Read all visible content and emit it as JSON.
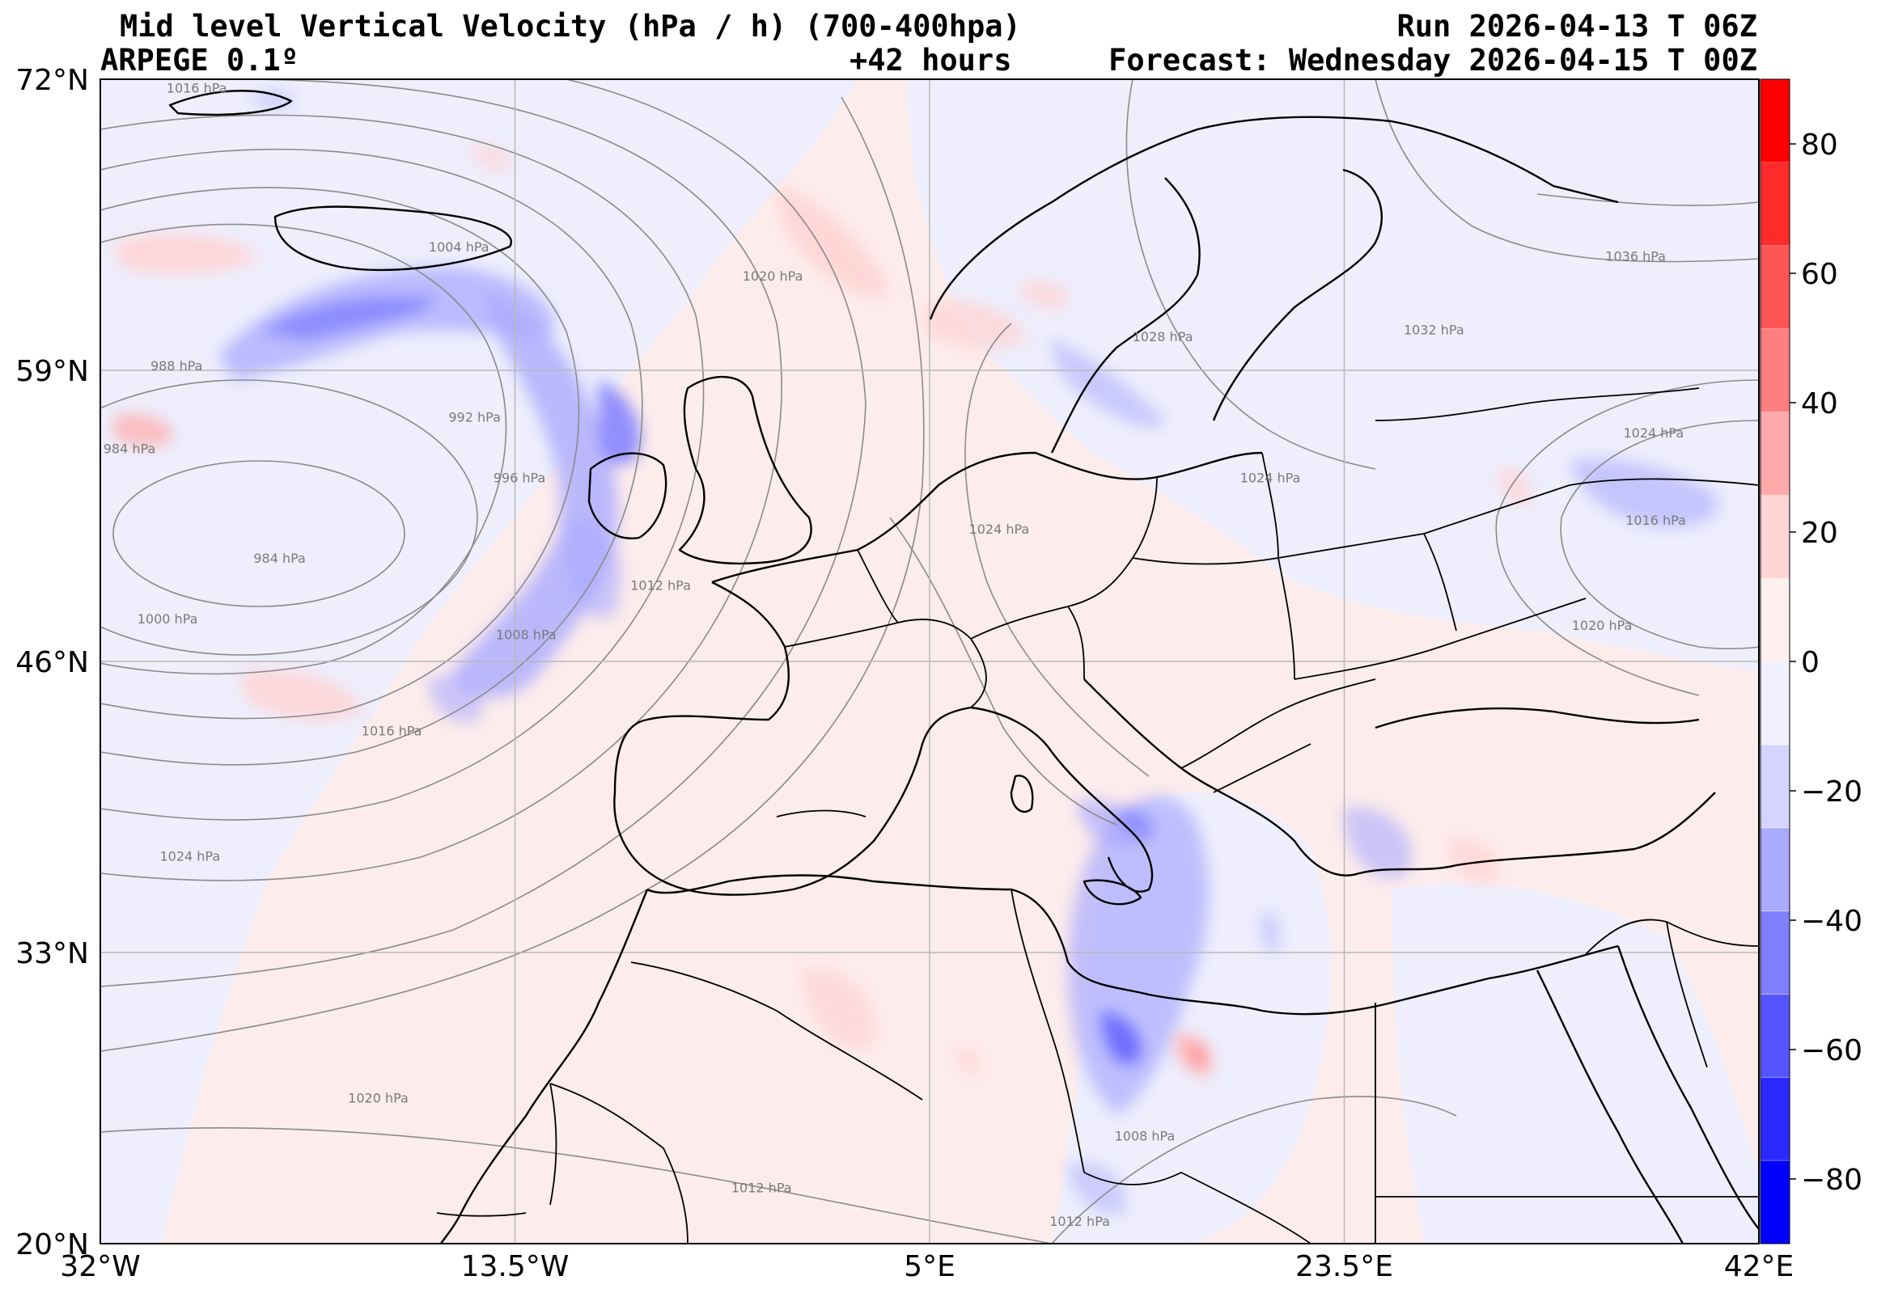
{
  "header": {
    "title": "Mid level Vertical Velocity (hPa / h)  (700-400hpa)",
    "run": "Run 2026-04-13 T 06Z",
    "model": "ARPEGE 0.1º",
    "lead": "+42 hours",
    "forecast": "Forecast: Wednesday 2026-04-15 T 00Z"
  },
  "map": {
    "lon_range": [
      -32,
      42
    ],
    "lat_range": [
      20,
      72
    ],
    "lat_ticks": [
      {
        "value": 72,
        "label": "72°N"
      },
      {
        "value": 59,
        "label": "59°N"
      },
      {
        "value": 46,
        "label": "46°N"
      },
      {
        "value": 33,
        "label": "33°N"
      },
      {
        "value": 20,
        "label": "20°N"
      }
    ],
    "lon_ticks": [
      {
        "value": -32,
        "label": "32°W"
      },
      {
        "value": -13.5,
        "label": "13.5°W"
      },
      {
        "value": 5,
        "label": "5°E"
      },
      {
        "value": 23.5,
        "label": "23.5°E"
      },
      {
        "value": 42,
        "label": "42°E"
      }
    ],
    "isobar_labels": [
      {
        "text": "1016 hPa",
        "lon": -27.7,
        "lat": 71.4
      },
      {
        "text": "1004 hPa",
        "lon": -16.0,
        "lat": 64.3
      },
      {
        "text": "988 hPa",
        "lon": -28.6,
        "lat": 59.0
      },
      {
        "text": "992 hPa",
        "lon": -15.3,
        "lat": 56.7
      },
      {
        "text": "984 hPa",
        "lon": -30.7,
        "lat": 55.3
      },
      {
        "text": "996 hPa",
        "lon": -13.3,
        "lat": 54.0
      },
      {
        "text": "984 hPa",
        "lon": -24.0,
        "lat": 50.4
      },
      {
        "text": "1000 hPa",
        "lon": -29.0,
        "lat": 47.7
      },
      {
        "text": "1008 hPa",
        "lon": -13.0,
        "lat": 47.0
      },
      {
        "text": "1012 hPa",
        "lon": -7.0,
        "lat": 49.2
      },
      {
        "text": "1016 hPa",
        "lon": -19.0,
        "lat": 42.7
      },
      {
        "text": "1024 hPa",
        "lon": -28.0,
        "lat": 37.1
      },
      {
        "text": "1020 hPa",
        "lon": -19.6,
        "lat": 26.3
      },
      {
        "text": "1012 hPa",
        "lon": -2.5,
        "lat": 22.3
      },
      {
        "text": "1020 hPa",
        "lon": -2.0,
        "lat": 63.0
      },
      {
        "text": "1024 hPa",
        "lon": 8.1,
        "lat": 51.7
      },
      {
        "text": "1028 hPa",
        "lon": 15.4,
        "lat": 60.3
      },
      {
        "text": "1024 hPa",
        "lon": 20.2,
        "lat": 54.0
      },
      {
        "text": "1032 hPa",
        "lon": 27.5,
        "lat": 60.6
      },
      {
        "text": "1036 hPa",
        "lon": 36.5,
        "lat": 63.9
      },
      {
        "text": "1024 hPa",
        "lon": 37.3,
        "lat": 56.0
      },
      {
        "text": "1016 hPa",
        "lon": 37.4,
        "lat": 52.1
      },
      {
        "text": "1020 hPa",
        "lon": 35.0,
        "lat": 47.4
      },
      {
        "text": "1008 hPa",
        "lon": 14.6,
        "lat": 24.6
      },
      {
        "text": "1012 hPa",
        "lon": 11.7,
        "lat": 20.8
      }
    ]
  },
  "colorbar": {
    "range": [
      -90,
      90
    ],
    "ticks": [
      {
        "value": 80,
        "label": "80"
      },
      {
        "value": 60,
        "label": "60"
      },
      {
        "value": 40,
        "label": "40"
      },
      {
        "value": 20,
        "label": "20"
      },
      {
        "value": 0,
        "label": "0"
      },
      {
        "value": -20,
        "label": "−20"
      },
      {
        "value": -40,
        "label": "−40"
      },
      {
        "value": -60,
        "label": "−60"
      },
      {
        "value": -80,
        "label": "−80"
      }
    ],
    "colors_bottom_to_top": [
      "#0000ff",
      "#2a2aff",
      "#5555ff",
      "#7f7fff",
      "#aaaaff",
      "#d4d4ff",
      "#f0f0ff",
      "#fff0f0",
      "#ffd4d4",
      "#ffaaaa",
      "#ff7f7f",
      "#ff5555",
      "#ff2a2a",
      "#ff0000"
    ],
    "neutral_negative": "#eeeefd",
    "neutral_positive": "#fdecec"
  }
}
